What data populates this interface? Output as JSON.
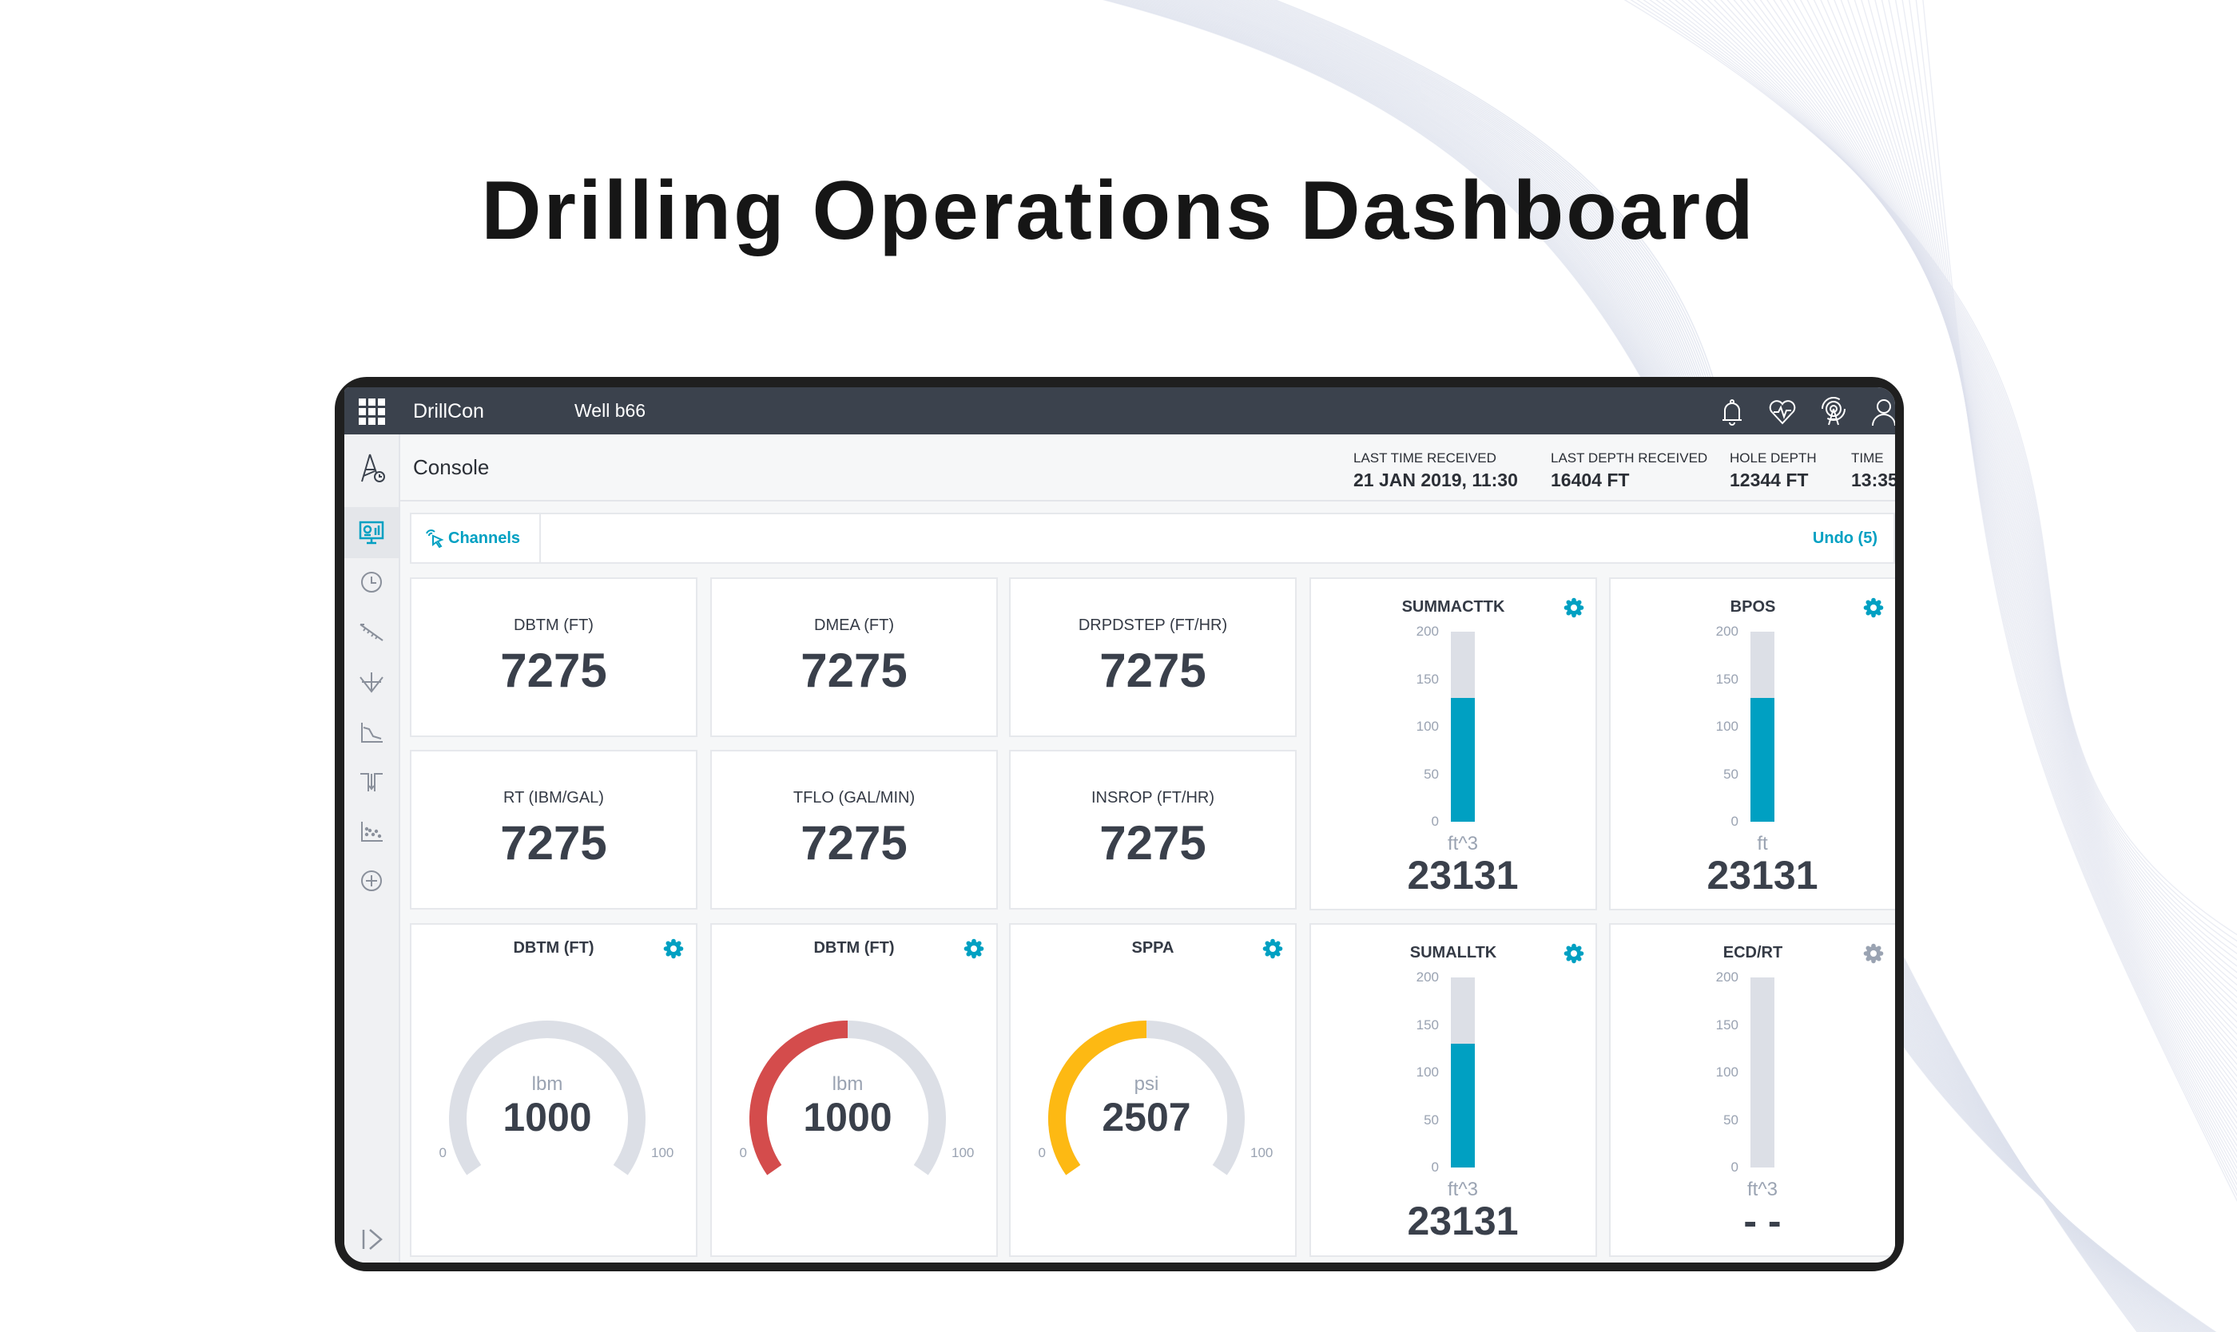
{
  "page_title": "Drilling Operations Dashboard",
  "topbar": {
    "app_name": "DrillCon",
    "well": "Well b66",
    "icons": [
      "apps-grid-icon",
      "bell-icon",
      "heart-pulse-icon",
      "antenna-icon",
      "user-icon"
    ]
  },
  "header": {
    "title": "Console",
    "stats": [
      {
        "label": "LAST TIME RECEIVED",
        "value": "21 JAN 2019, 11:30"
      },
      {
        "label": "LAST DEPTH RECEIVED",
        "value": "16404 FT"
      },
      {
        "label": "HOLE DEPTH",
        "value": "12344 FT"
      },
      {
        "label": "TIME",
        "value": "13:35"
      }
    ]
  },
  "toolbar": {
    "channels_label": "Channels",
    "undo_label": "Undo (5)"
  },
  "colors": {
    "accent": "#00a0c2",
    "topbar": "#3b424d",
    "track": "#dcdfe6",
    "red": "#d44c4c",
    "yellow": "#fdb913",
    "muted_gear": "#9aa3b2"
  },
  "value_cards": [
    {
      "label": "DBTM (FT)",
      "value": "7275"
    },
    {
      "label": "DMEA (FT)",
      "value": "7275"
    },
    {
      "label": "DRPDSTEP (FT/HR)",
      "value": "7275"
    },
    {
      "label": "RT (IBM/GAL)",
      "value": "7275"
    },
    {
      "label": "TFLO (GAL/MIN)",
      "value": "7275"
    },
    {
      "label": "INSROP (FT/HR)",
      "value": "7275"
    }
  ],
  "bar_cards": [
    {
      "title": "SUMMACTTK",
      "unit": "ft^3",
      "value": "23131",
      "level": 130,
      "max": 200,
      "ticks": [
        "200",
        "150",
        "100",
        "50",
        "0"
      ],
      "gear_active": true
    },
    {
      "title": "BPOS",
      "unit": "ft",
      "value": "23131",
      "level": 130,
      "max": 200,
      "ticks": [
        "200",
        "150",
        "100",
        "50",
        "0"
      ],
      "gear_active": true
    },
    {
      "title": "SUMALLTK",
      "unit": "ft^3",
      "value": "23131",
      "level": 130,
      "max": 200,
      "ticks": [
        "200",
        "150",
        "100",
        "50",
        "0"
      ],
      "gear_active": true
    },
    {
      "title": "ECD/RT",
      "unit": "ft^3",
      "value": "- -",
      "level": 0,
      "max": 200,
      "ticks": [
        "200",
        "150",
        "100",
        "50",
        "0"
      ],
      "gear_active": false
    }
  ],
  "gauge_cards": [
    {
      "title": "DBTM (FT)",
      "unit": "lbm",
      "value": "1000",
      "min_label": "0",
      "max_label": "100",
      "fill_fraction": 0,
      "color": "#dcdfe6"
    },
    {
      "title": "DBTM (FT)",
      "unit": "lbm",
      "value": "1000",
      "min_label": "0",
      "max_label": "100",
      "fill_fraction": 0.5,
      "color": "#d44c4c"
    },
    {
      "title": "SPPA",
      "unit": "psi",
      "value": "2507",
      "min_label": "0",
      "max_label": "100",
      "fill_fraction": 0.5,
      "color": "#fdb913"
    }
  ]
}
